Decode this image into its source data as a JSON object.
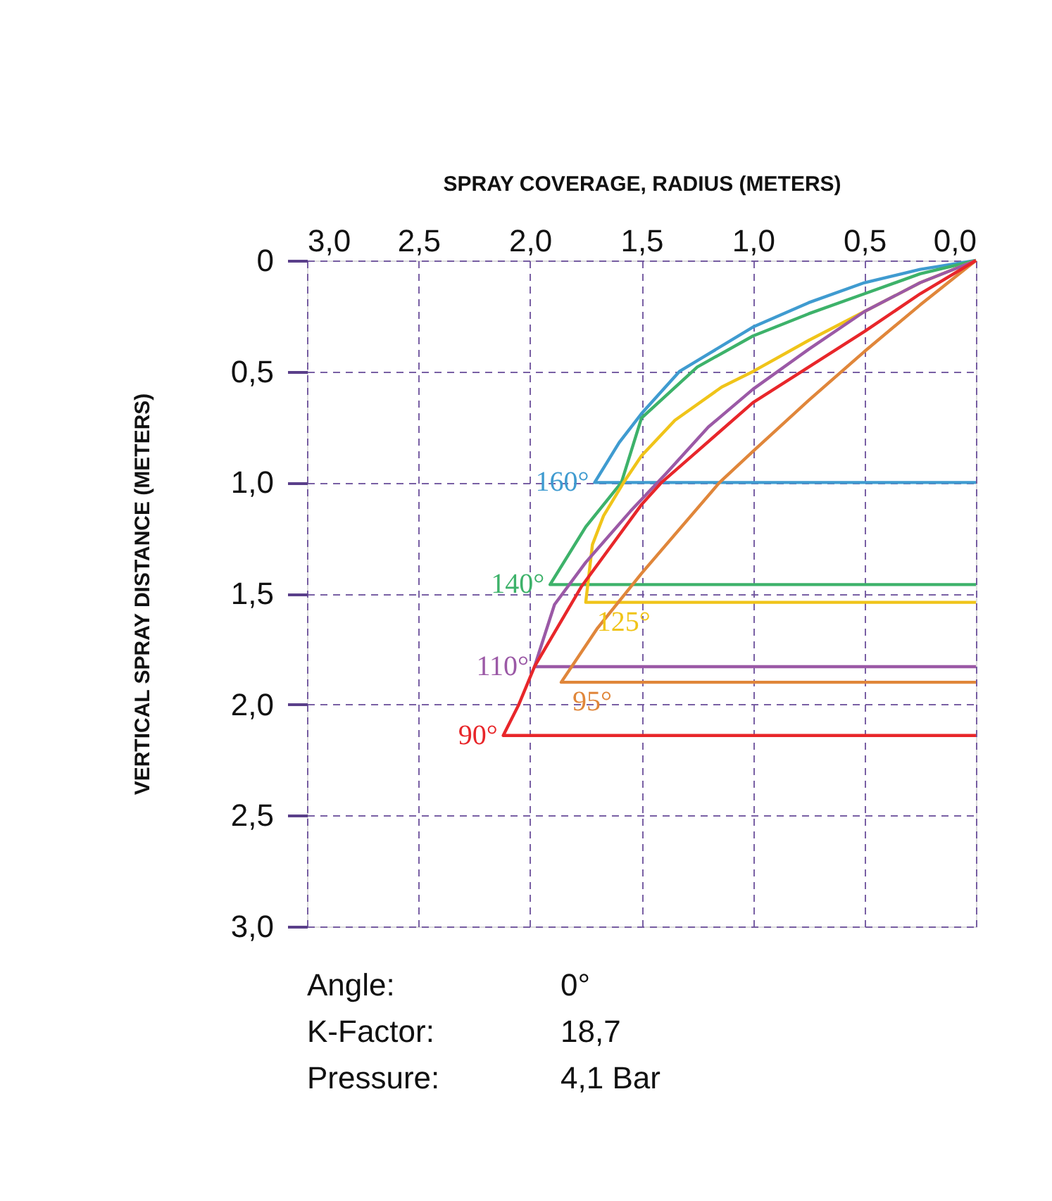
{
  "chart_data": {
    "type": "line",
    "xlabel": "SPRAY COVERAGE, RADIUS (METERS)",
    "ylabel": "VERTICAL SPRAY DISTANCE (METERS)",
    "xlim": [
      3.0,
      0.0
    ],
    "ylim": [
      3.0,
      0.0
    ],
    "xticks": [
      {
        "value": 3.0,
        "label": "3,0"
      },
      {
        "value": 2.5,
        "label": "2,5"
      },
      {
        "value": 2.0,
        "label": "2,0"
      },
      {
        "value": 1.5,
        "label": "1,5"
      },
      {
        "value": 1.0,
        "label": "1,0"
      },
      {
        "value": 0.5,
        "label": "0,5"
      },
      {
        "value": 0.0,
        "label": "0,0"
      }
    ],
    "yticks": [
      0,
      {
        "value": 0.5,
        "label": "0,5"
      },
      {
        "value": 1.0,
        "label": "1,0"
      },
      {
        "value": 1.5,
        "label": "1,5"
      },
      {
        "value": 2.0,
        "label": "2,0"
      },
      {
        "value": 2.5,
        "label": "2,5"
      },
      {
        "value": 3.0,
        "label": "3,0"
      }
    ],
    "grid": true,
    "legend": false,
    "line_style": "solid",
    "marker": "none",
    "series": [
      {
        "name": "160°",
        "color": "#3f9bd0",
        "x": [
          0,
          0.25,
          0.5,
          0.75,
          1.0,
          1.33,
          1.5,
          1.6,
          1.71,
          0
        ],
        "values": [
          0,
          0.04,
          0.1,
          0.19,
          0.3,
          0.5,
          0.69,
          0.82,
          1.0,
          1.0
        ]
      },
      {
        "name": "140°",
        "color": "#3db26a",
        "x": [
          0,
          0.25,
          0.5,
          0.75,
          1.0,
          1.25,
          1.5,
          1.59,
          1.75,
          1.91,
          0
        ],
        "values": [
          0,
          0.06,
          0.15,
          0.24,
          0.34,
          0.48,
          0.71,
          1.0,
          1.2,
          1.46,
          1.46
        ]
      },
      {
        "name": "125°",
        "color": "#f0c419",
        "x": [
          0,
          0.25,
          0.5,
          0.75,
          1.0,
          1.14,
          1.35,
          1.5,
          1.58,
          1.67,
          1.72,
          1.75,
          0
        ],
        "values": [
          0,
          0.1,
          0.23,
          0.36,
          0.5,
          0.57,
          0.72,
          0.88,
          1.0,
          1.15,
          1.28,
          1.54,
          1.54
        ]
      },
      {
        "name": "110°",
        "color": "#9b59a6",
        "x": [
          0,
          0.25,
          0.5,
          0.75,
          1.0,
          1.2,
          1.39,
          1.55,
          1.75,
          1.89,
          1.98,
          0
        ],
        "values": [
          0,
          0.1,
          0.23,
          0.4,
          0.58,
          0.75,
          0.96,
          1.13,
          1.36,
          1.55,
          1.83,
          1.83
        ]
      },
      {
        "name": "95°",
        "color": "#e0863a",
        "x": [
          0,
          0.25,
          0.5,
          0.75,
          1.0,
          1.15,
          1.5,
          1.7,
          1.86,
          0
        ],
        "values": [
          0,
          0.2,
          0.41,
          0.63,
          0.86,
          1.0,
          1.41,
          1.66,
          1.9,
          1.9
        ]
      },
      {
        "name": "90°",
        "color": "#e8262a",
        "x": [
          0,
          0.25,
          0.5,
          0.75,
          1.0,
          1.25,
          1.41,
          1.5,
          1.77,
          1.98,
          2.05,
          2.12,
          0
        ],
        "values": [
          0,
          0.15,
          0.32,
          0.48,
          0.64,
          0.86,
          1.0,
          1.1,
          1.47,
          1.83,
          2.0,
          2.14,
          2.14
        ]
      }
    ],
    "annotations": [
      "Angle:",
      "0°",
      "K-Factor:",
      "18,7",
      "Pressure:",
      "4,1 Bar"
    ]
  }
}
